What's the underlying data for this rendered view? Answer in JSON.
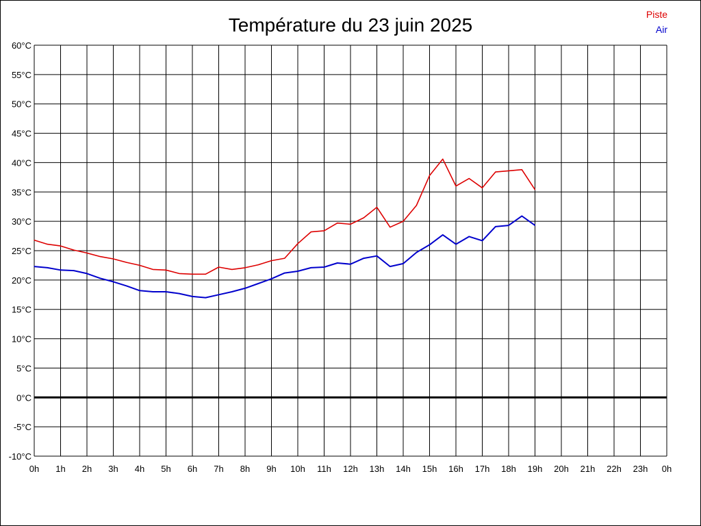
{
  "chart_data": {
    "type": "line",
    "title": "Température du 23 juin 2025",
    "xlabel": "",
    "ylabel": "",
    "xlim": [
      0,
      24
    ],
    "ylim": [
      -10,
      60
    ],
    "grid": true,
    "legend_position": "top-right",
    "x_tick_labels": [
      "0h",
      "1h",
      "2h",
      "3h",
      "4h",
      "5h",
      "6h",
      "7h",
      "8h",
      "9h",
      "10h",
      "11h",
      "12h",
      "13h",
      "14h",
      "15h",
      "16h",
      "17h",
      "18h",
      "19h",
      "20h",
      "21h",
      "22h",
      "23h",
      "0h"
    ],
    "y_tick_labels": [
      "60°C",
      "55°C",
      "50°C",
      "45°C",
      "40°C",
      "35°C",
      "30°C",
      "25°C",
      "20°C",
      "15°C",
      "10°C",
      "5°C",
      "0°C",
      "-5°C",
      "-10°C"
    ],
    "y_tick_values": [
      60,
      55,
      50,
      45,
      40,
      35,
      30,
      25,
      20,
      15,
      10,
      5,
      0,
      -5,
      -10
    ],
    "x": [
      0,
      0.5,
      1,
      1.5,
      2,
      2.5,
      3,
      3.5,
      4,
      4.5,
      5,
      5.5,
      6,
      6.5,
      7,
      7.5,
      8,
      8.5,
      9,
      9.5,
      10,
      10.5,
      11,
      11.5,
      12,
      12.5,
      13,
      13.5,
      14,
      14.5,
      15,
      15.5,
      16,
      16.5,
      17,
      17.5,
      18,
      18.5,
      19
    ],
    "series": [
      {
        "name": "Piste",
        "color": "#dd0000",
        "values": [
          26.8,
          26.1,
          25.8,
          25.1,
          24.6,
          24.0,
          23.6,
          23.0,
          22.5,
          21.8,
          21.7,
          21.1,
          21.0,
          21.0,
          22.2,
          21.8,
          22.1,
          22.6,
          23.3,
          23.7,
          26.2,
          28.2,
          28.4,
          29.7,
          29.5,
          30.6,
          32.4,
          29.0,
          30.0,
          32.7,
          37.8,
          40.6,
          36.0,
          37.3,
          35.7,
          38.4,
          38.6,
          38.8,
          35.4
        ]
      },
      {
        "name": "Air",
        "color": "#0000cc",
        "values": [
          22.3,
          22.1,
          21.7,
          21.6,
          21.1,
          20.3,
          19.7,
          19.0,
          18.2,
          18.0,
          18.0,
          17.7,
          17.2,
          17.0,
          17.5,
          18.0,
          18.6,
          19.4,
          20.2,
          21.2,
          21.5,
          22.1,
          22.2,
          22.9,
          22.7,
          23.7,
          24.1,
          22.3,
          22.8,
          24.7,
          26.0,
          27.7,
          26.1,
          27.4,
          26.7,
          29.1,
          29.3,
          30.9,
          29.3
        ]
      }
    ]
  }
}
